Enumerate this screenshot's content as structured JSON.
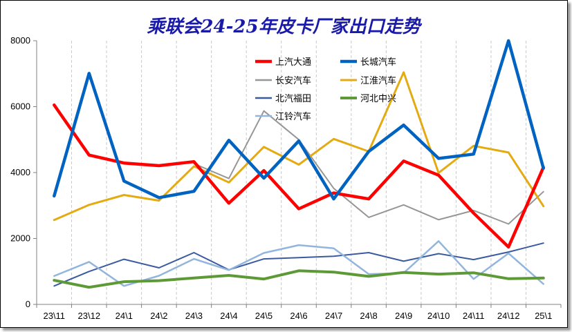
{
  "chart_data": {
    "type": "line",
    "title": "乘联会24-25年皮卡厂家出口走势",
    "categories": [
      "23\\11",
      "23\\12",
      "24\\1",
      "24\\2",
      "24\\3",
      "24\\4",
      "24\\5",
      "24\\6",
      "24\\7",
      "24\\8",
      "24\\9",
      "24\\10",
      "24\\11",
      "24\\12",
      "25\\1"
    ],
    "ylim": [
      0,
      8000
    ],
    "yticks": [
      0,
      2000,
      4000,
      6000,
      8000
    ],
    "grid": "vertical-dashed",
    "legend_placement": "top-center",
    "series": [
      {
        "name": "上汽大通",
        "color": "#ff0000",
        "width": 4.5,
        "values": [
          6050,
          4530,
          4290,
          4210,
          4330,
          3070,
          4060,
          2900,
          3380,
          3200,
          4350,
          3920,
          2770,
          1740,
          4160
        ]
      },
      {
        "name": "长城汽车",
        "color": "#0063c1",
        "width": 4.5,
        "values": [
          3290,
          7010,
          3740,
          3240,
          3430,
          4980,
          3830,
          4960,
          3200,
          4640,
          5440,
          4430,
          4560,
          8000,
          4130
        ]
      },
      {
        "name": "长安汽车",
        "color": "#969696",
        "width": 2,
        "values": [
          null,
          null,
          null,
          null,
          4270,
          3820,
          5870,
          5000,
          3520,
          2640,
          3020,
          2570,
          2850,
          2440,
          3420
        ]
      },
      {
        "name": "江淮汽车",
        "color": "#e3aa12",
        "width": 3,
        "values": [
          2560,
          3020,
          3320,
          3150,
          4190,
          3700,
          4780,
          4240,
          5020,
          4640,
          7040,
          3990,
          4810,
          4610,
          2980
        ]
      },
      {
        "name": "北汽福田",
        "color": "#3a5a9f",
        "width": 2,
        "values": [
          560,
          1000,
          1370,
          1110,
          1570,
          1050,
          1380,
          1420,
          1460,
          1570,
          1310,
          1540,
          1360,
          1590,
          1860
        ]
      },
      {
        "name": "河北中兴",
        "color": "#5d9a37",
        "width": 4,
        "values": [
          730,
          520,
          690,
          720,
          800,
          880,
          770,
          1020,
          980,
          850,
          970,
          920,
          960,
          780,
          800
        ]
      },
      {
        "name": "江铃汽车",
        "color": "#91b5dd",
        "width": 2.5,
        "values": [
          860,
          1290,
          560,
          870,
          1380,
          1040,
          1560,
          1800,
          1700,
          920,
          950,
          1920,
          770,
          1550,
          620
        ]
      }
    ]
  }
}
